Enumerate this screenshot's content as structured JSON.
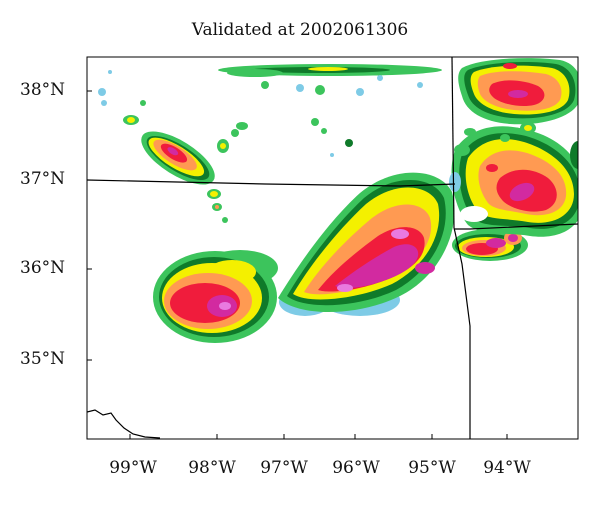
{
  "title": "Validated at 2002061306",
  "lat_labels": [
    "38°N",
    "37°N",
    "36°N",
    "35°N"
  ],
  "lon_labels": [
    "99°W",
    "98°W",
    "97°W",
    "96°W",
    "95°W",
    "94°W"
  ],
  "palette": {
    "light_blue": "#7ecbe6",
    "green": "#3cc45c",
    "dark_green": "#0f7a2a",
    "yellow": "#f4f000",
    "orange": "#ff9a52",
    "red": "#f01c3c",
    "magenta": "#d22aa0",
    "pink": "#e97ae0"
  }
}
